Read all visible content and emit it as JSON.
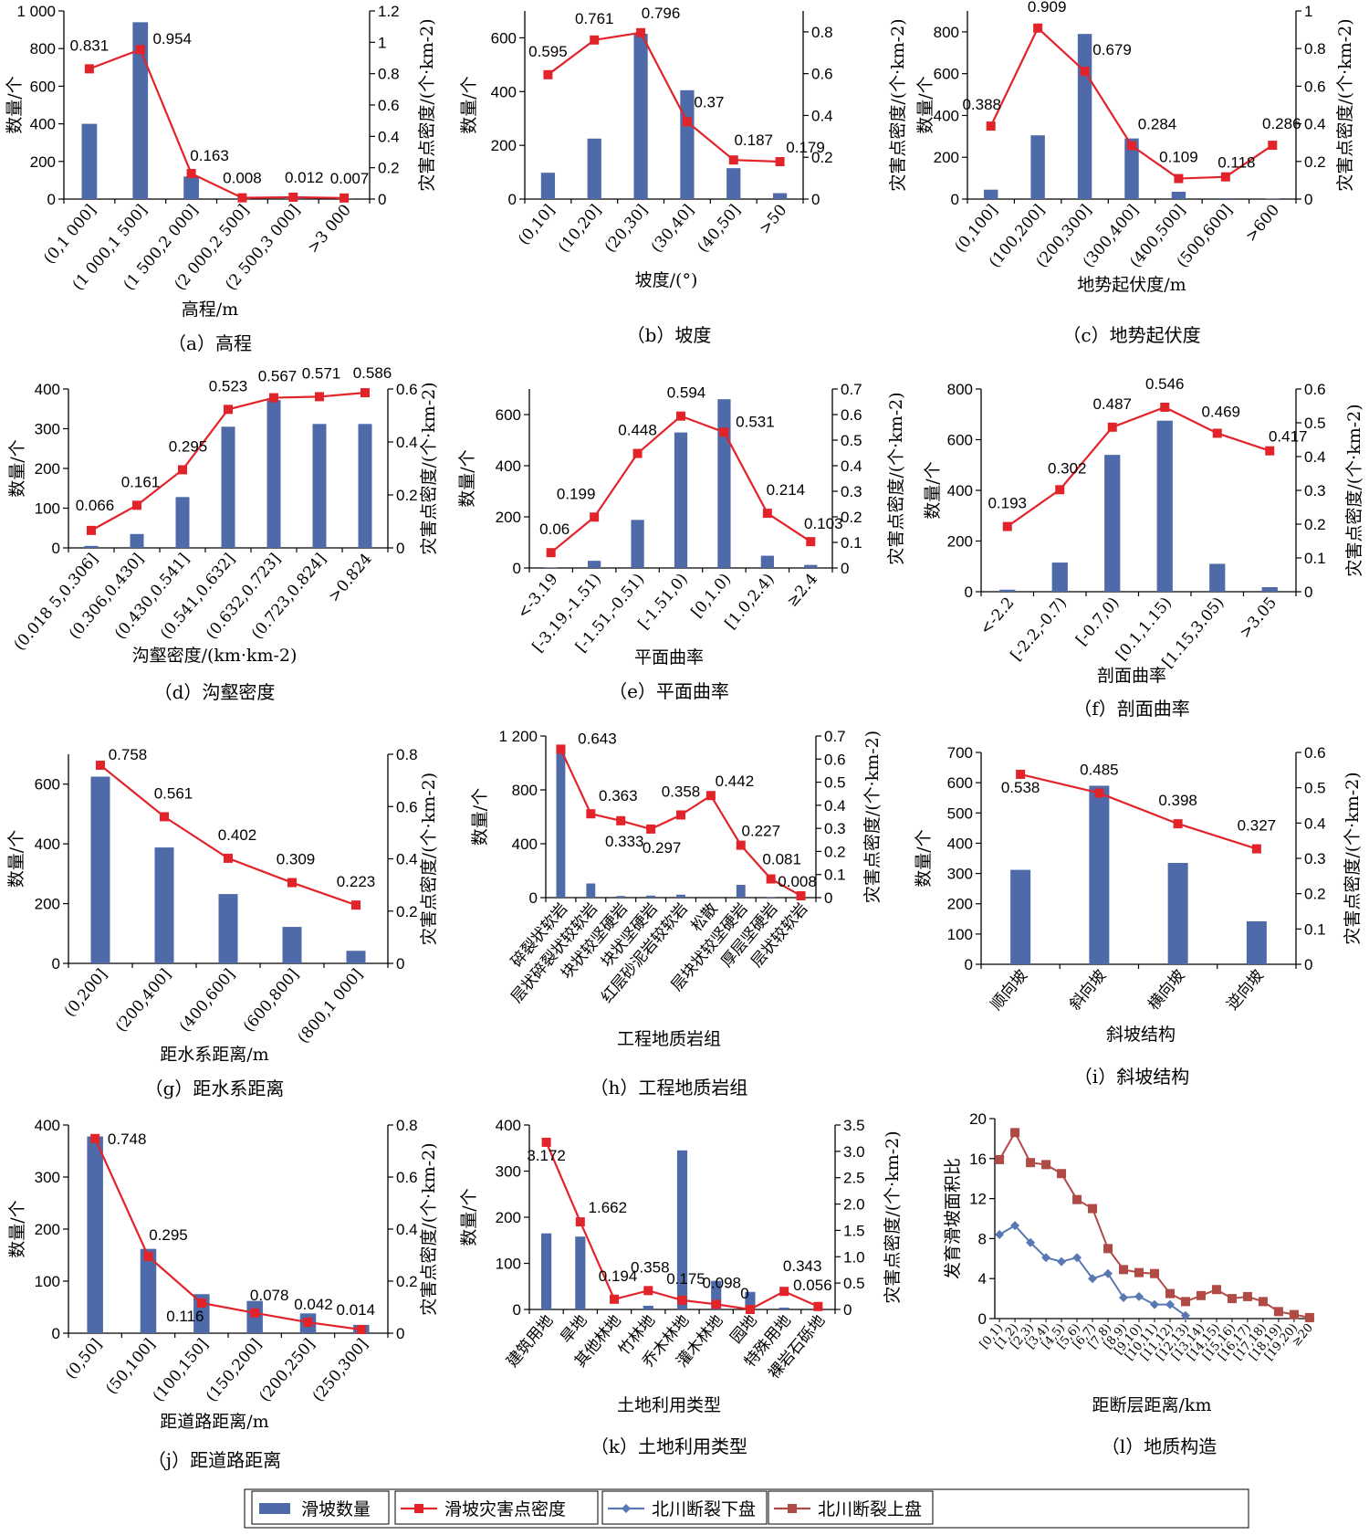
{
  "legend": {
    "items": [
      {
        "label": "滑坡数量",
        "kind": "bar",
        "color": "#4f6aa8"
      },
      {
        "label": "滑坡灾害点密度",
        "kind": "line",
        "color": "#e2232a"
      },
      {
        "label": "北川断裂下盘",
        "kind": "line-diamond",
        "color": "#5878b4"
      },
      {
        "label": "北川断裂上盘",
        "kind": "line-square",
        "color": "#b04a45"
      }
    ]
  },
  "chart_data": [
    {
      "id": "a",
      "type": "bar+line",
      "caption": "（a）高程",
      "xlabel": "高程/m",
      "ylabel": "数量/个",
      "y2label": "灾害点密度/(个·km-2)",
      "categories": [
        "(0,1 000]",
        "(1 000,1 500]",
        "(1 500,2 000]",
        "(2 000,2 500]",
        "(2 500,3 000]",
        ">3 000"
      ],
      "bars": [
        400,
        940,
        120,
        5,
        8,
        4
      ],
      "line": [
        0.831,
        0.954,
        0.163,
        0.008,
        0.012,
        0.007
      ],
      "line_labels": [
        "0.831",
        "0.954",
        "0.163",
        "0.008",
        "0.012",
        "0.007"
      ],
      "ylim": [
        0,
        1000
      ],
      "yticks": [
        0,
        200,
        400,
        600,
        800,
        1000
      ],
      "yticklabels": [
        "0",
        "200",
        "400",
        "600",
        "800",
        "1 000"
      ],
      "y2lim": [
        0,
        1.2
      ],
      "y2ticks": [
        0,
        0.2,
        0.4,
        0.6,
        0.8,
        1,
        1.2
      ],
      "y2ticklabels": [
        "0",
        "0.2",
        "0.4",
        "0.6",
        "0.8",
        "1",
        "1.2"
      ]
    },
    {
      "id": "b",
      "type": "bar+line",
      "caption": "（b）坡度",
      "xlabel": "坡度/(°)",
      "ylabel": "数量/个",
      "y2label": "灾害点密度/(个·km-2)",
      "categories": [
        "(0,10]",
        "(10,20]",
        "(20,30]",
        "(30,40]",
        "(40,50]",
        ">50"
      ],
      "bars": [
        98,
        225,
        615,
        405,
        115,
        22
      ],
      "line": [
        0.595,
        0.761,
        0.796,
        0.37,
        0.187,
        0.179
      ],
      "line_labels": [
        "0.595",
        "0.761",
        "0.796",
        "0.37",
        "0.187",
        "0.179"
      ],
      "ylim": [
        0,
        700
      ],
      "yticks": [
        0,
        200,
        400,
        600
      ],
      "yticklabels": [
        "0",
        "200",
        "400",
        "600"
      ],
      "y2lim": [
        0,
        0.9
      ],
      "y2ticks": [
        0,
        0.2,
        0.4,
        0.6,
        0.8
      ],
      "y2ticklabels": [
        "0",
        "0.2",
        "0.4",
        "0.6",
        "0.8"
      ]
    },
    {
      "id": "c",
      "type": "bar+line",
      "caption": "（c）地势起伏度",
      "xlabel": "地势起伏度/m",
      "ylabel": "数量/个",
      "y2label": "灾害点密度/(个·km-2)",
      "categories": [
        "(0,100]",
        "(100,200]",
        "(200,300]",
        "(300,400]",
        "(400,500]",
        "(500,600]",
        ">600"
      ],
      "bars": [
        45,
        305,
        790,
        290,
        35,
        4,
        2
      ],
      "line": [
        0.388,
        0.909,
        0.679,
        0.284,
        0.109,
        0.118,
        0.286
      ],
      "line_labels": [
        "0.388",
        "0.909",
        "0.679",
        "0.284",
        "0.109",
        "0.118",
        "0.286"
      ],
      "ylim": [
        0,
        900
      ],
      "yticks": [
        0,
        200,
        400,
        600,
        800
      ],
      "yticklabels": [
        "0",
        "200",
        "400",
        "600",
        "800"
      ],
      "y2lim": [
        0,
        1
      ],
      "y2ticks": [
        0,
        0.2,
        0.4,
        0.6,
        0.8,
        1
      ],
      "y2ticklabels": [
        "0",
        "0.2",
        "0.4",
        "0.6",
        "0.8",
        "1"
      ]
    },
    {
      "id": "d",
      "type": "bar+line",
      "caption": "（d）沟壑密度",
      "xlabel": "沟壑密度/(km·km-2)",
      "ylabel": "数量/个",
      "y2label": "灾害点密度/(个·km-2)",
      "categories": [
        "(0.018 5,0.306]",
        "(0.306,0.430]",
        "(0.430,0.541]",
        "(0.541,0.632]",
        "(0.632,0.723]",
        "(0.723,0.824]",
        ">0.824"
      ],
      "bars": [
        5,
        35,
        128,
        305,
        372,
        312,
        312
      ],
      "line": [
        0.066,
        0.161,
        0.295,
        0.523,
        0.567,
        0.571,
        0.586
      ],
      "line_labels": [
        "0.066",
        "0.161",
        "0.295",
        "0.523",
        "0.567",
        "0.571",
        "0.586"
      ],
      "ylim": [
        0,
        400
      ],
      "yticks": [
        0,
        100,
        200,
        300,
        400
      ],
      "yticklabels": [
        "0",
        "100",
        "200",
        "300",
        "400"
      ],
      "y2lim": [
        0,
        0.6
      ],
      "y2ticks": [
        0,
        0.2,
        0.4,
        0.6
      ],
      "y2ticklabels": [
        "0",
        "0.2",
        "0.4",
        "0.6"
      ]
    },
    {
      "id": "e",
      "type": "bar+line",
      "caption": "（e）平面曲率",
      "xlabel": "平面曲率",
      "ylabel": "数量/个",
      "y2label": "灾害点密度/(个·km-2)",
      "categories": [
        "<-3.19",
        "[-3.19,-1.51)",
        "[-1.51,-0.51)",
        "[-1.51,0)",
        "[0,1.0)",
        "[1.0,2.4)",
        "≥2.4"
      ],
      "bars": [
        2,
        28,
        188,
        530,
        660,
        48,
        12
      ],
      "line": [
        0.06,
        0.199,
        0.448,
        0.594,
        0.531,
        0.214,
        0.103
      ],
      "line_labels": [
        "0.06",
        "0.199",
        "0.448",
        "0.594",
        "0.531",
        "0.214",
        "0.103"
      ],
      "ylim": [
        0,
        700
      ],
      "yticks": [
        0,
        200,
        400,
        600
      ],
      "yticklabels": [
        "0",
        "200",
        "400",
        "600"
      ],
      "y2lim": [
        0,
        0.7
      ],
      "y2ticks": [
        0,
        0.1,
        0.2,
        0.3,
        0.4,
        0.5,
        0.6,
        0.7
      ],
      "y2ticklabels": [
        "0",
        "0.1",
        "0.2",
        "0.3",
        "0.4",
        "0.5",
        "0.6",
        "0.7"
      ]
    },
    {
      "id": "f",
      "type": "bar+line",
      "caption": "（f）剖面曲率",
      "xlabel": "剖面曲率",
      "ylabel": "数量/个",
      "y2label": "灾害点密度/(个·km-2)",
      "categories": [
        "<-2.2",
        "[-2.2,-0.7)",
        "[-0.7,0)",
        "[0.1,1.15)",
        "[1.15,3.05)",
        ">3.05"
      ],
      "bars": [
        8,
        115,
        540,
        675,
        110,
        18
      ],
      "line": [
        0.193,
        0.302,
        0.487,
        0.546,
        0.469,
        0.417
      ],
      "line_labels": [
        "0.193",
        "0.302",
        "0.487",
        "0.546",
        "0.469",
        "0.417"
      ],
      "ylim": [
        0,
        800
      ],
      "yticks": [
        0,
        200,
        400,
        600,
        800
      ],
      "yticklabels": [
        "0",
        "200",
        "400",
        "600",
        "800"
      ],
      "y2lim": [
        0,
        0.6
      ],
      "y2ticks": [
        0,
        0.1,
        0.2,
        0.3,
        0.4,
        0.5,
        0.6
      ],
      "y2ticklabels": [
        "0",
        "0.1",
        "0.2",
        "0.3",
        "0.4",
        "0.5",
        "0.6"
      ]
    },
    {
      "id": "g",
      "type": "bar+line",
      "caption": "（g）距水系距离",
      "xlabel": "距水系距离/m",
      "ylabel": "数量/个",
      "y2label": "灾害点密度/(个·km-2)",
      "categories": [
        "(0,200]",
        "(200,400]",
        "(400,600]",
        "(600,800]",
        "(800,1 000]"
      ],
      "bars": [
        625,
        388,
        232,
        122,
        42
      ],
      "line": [
        0.758,
        0.561,
        0.402,
        0.309,
        0.223
      ],
      "line_labels": [
        "0.758",
        "0.561",
        "0.402",
        "0.309",
        "0.223"
      ],
      "ylim": [
        0,
        700
      ],
      "yticks": [
        0,
        200,
        400,
        600
      ],
      "yticklabels": [
        "0",
        "200",
        "400",
        "600"
      ],
      "y2lim": [
        0,
        0.8
      ],
      "y2ticks": [
        0,
        0.2,
        0.4,
        0.6,
        0.8
      ],
      "y2ticklabels": [
        "0",
        "0.2",
        "0.4",
        "0.6",
        "0.8"
      ]
    },
    {
      "id": "h",
      "type": "bar+line",
      "caption": "（h）工程地质岩组",
      "xlabel": "工程地质岩组",
      "ylabel": "数量/个",
      "y2label": "灾害点密度/(个·km-2)",
      "categories": [
        "碎裂状软岩",
        "层状碎裂状较软岩",
        "块状较坚硬岩",
        "块状坚硬岩",
        "红层砂泥岩较软岩",
        "松散",
        "层块状较坚硬岩",
        "厚层坚硬岩",
        "层状较软岩"
      ],
      "bars": [
        1130,
        105,
        12,
        15,
        22,
        0,
        95,
        4,
        2
      ],
      "line": [
        0.643,
        0.363,
        0.333,
        0.297,
        0.358,
        0.442,
        0.227,
        0.081,
        0.008
      ],
      "line_labels": [
        "0.643",
        "0.363",
        "0.333",
        "0.297",
        "0.358",
        "0.442",
        "0.227",
        "0.081",
        "0.008"
      ],
      "ylim": [
        0,
        1200
      ],
      "yticks": [
        0,
        400,
        800,
        1200
      ],
      "yticklabels": [
        "0",
        "400",
        "800",
        "1 200"
      ],
      "y2lim": [
        0,
        0.7
      ],
      "y2ticks": [
        0,
        0.1,
        0.2,
        0.3,
        0.4,
        0.5,
        0.6,
        0.7
      ],
      "y2ticklabels": [
        "0",
        "0.1",
        "0.2",
        "0.3",
        "0.4",
        "0.5",
        "0.6",
        "0.7"
      ]
    },
    {
      "id": "i",
      "type": "bar+line",
      "caption": "（i）斜坡结构",
      "xlabel": "斜坡结构",
      "ylabel": "数量/个",
      "y2label": "灾害点密度/(个·km-2)",
      "categories": [
        "顺向坡",
        "斜向坡",
        "横向坡",
        "逆向坡"
      ],
      "bars": [
        312,
        590,
        335,
        142
      ],
      "line": [
        0.538,
        0.485,
        0.398,
        0.327
      ],
      "line_labels": [
        "0.538",
        "0.485",
        "0.398",
        "0.327"
      ],
      "ylim": [
        0,
        700
      ],
      "yticks": [
        0,
        100,
        200,
        300,
        400,
        500,
        600,
        700
      ],
      "yticklabels": [
        "0",
        "100",
        "200",
        "300",
        "400",
        "500",
        "600",
        "700"
      ],
      "y2lim": [
        0,
        0.6
      ],
      "y2ticks": [
        0,
        0.1,
        0.2,
        0.3,
        0.4,
        0.5,
        0.6
      ],
      "y2ticklabels": [
        "0",
        "0.1",
        "0.2",
        "0.3",
        "0.4",
        "0.5",
        "0.6"
      ]
    },
    {
      "id": "j",
      "type": "bar+line",
      "caption": "（j）距道路距离",
      "xlabel": "距道路距离/m",
      "ylabel": "数量/个",
      "y2label": "灾害点密度/(个·km-2)",
      "categories": [
        "(0,50]",
        "(50,100]",
        "(100,150]",
        "(150,200]",
        "(200,250]",
        "(250,300]"
      ],
      "bars": [
        378,
        162,
        75,
        62,
        38,
        16
      ],
      "line": [
        0.748,
        0.295,
        0.116,
        0.078,
        0.042,
        0.014
      ],
      "line_labels": [
        "0.748",
        "0.295",
        "0.116",
        "0.078",
        "0.042",
        "0.014"
      ],
      "ylim": [
        0,
        400
      ],
      "yticks": [
        0,
        100,
        200,
        300,
        400
      ],
      "yticklabels": [
        "0",
        "100",
        "200",
        "300",
        "400"
      ],
      "y2lim": [
        0,
        0.8
      ],
      "y2ticks": [
        0,
        0.2,
        0.4,
        0.6,
        0.8
      ],
      "y2ticklabels": [
        "0",
        "0.2",
        "0.4",
        "0.6",
        "0.8"
      ]
    },
    {
      "id": "k",
      "type": "bar+line",
      "caption": "（k）土地利用类型",
      "xlabel": "土地利用类型",
      "ylabel": "数量/个",
      "y2label": "灾害点密度/(个·km-2)",
      "categories": [
        "建筑用地",
        "旱地",
        "其他林地",
        "竹林地",
        "乔木林地",
        "灌木林地",
        "园地",
        "特殊用地",
        "裸岩石砾地"
      ],
      "bars": [
        165,
        158,
        2,
        8,
        345,
        62,
        38,
        4,
        2
      ],
      "line": [
        3.172,
        1.662,
        0.194,
        0.358,
        0.175,
        0.098,
        0,
        0.343,
        0.056
      ],
      "line_labels": [
        "3.172",
        "1.662",
        "0.194",
        "0.358",
        "0.175",
        "0.098",
        "0",
        "0.343",
        "0.056"
      ],
      "ylim": [
        0,
        400
      ],
      "yticks": [
        0,
        100,
        200,
        300,
        400
      ],
      "yticklabels": [
        "0",
        "100",
        "200",
        "300",
        "400"
      ],
      "y2lim": [
        0,
        3.5
      ],
      "y2ticks": [
        0,
        0.5,
        1.0,
        1.5,
        2.0,
        2.5,
        3.0,
        3.5
      ],
      "y2ticklabels": [
        "0",
        "0.5",
        "1.0",
        "1.5",
        "2.0",
        "2.5",
        "3.0",
        "3.5"
      ]
    },
    {
      "id": "l",
      "type": "line",
      "caption": "（l）地质构造",
      "xlabel": "距断层距离/km",
      "ylabel": "发育滑坡面积比",
      "categories": [
        "[0,1)",
        "[1,2)",
        "[2,3)",
        "[3,4)",
        "[4,5)",
        "[5,6)",
        "[6,7)",
        "[7,8)",
        "[8,9)",
        "[9,10)",
        "[10,11)",
        "[11,12)",
        "[12,13)",
        "[13,14)",
        "[14,15)",
        "[15,16)",
        "[16,17)",
        "[17,18)",
        "[18,19)",
        "[19,20)",
        "≥20"
      ],
      "series": [
        {
          "name": "北川断裂下盘",
          "marker": "diamond",
          "values": [
            8.4,
            9.3,
            7.6,
            6.1,
            5.7,
            6.1,
            4.0,
            4.5,
            2.1,
            2.2,
            1.4,
            1.4,
            0.3,
            null,
            null,
            null,
            null,
            null,
            null,
            null,
            null
          ]
        },
        {
          "name": "北川断裂上盘",
          "marker": "square",
          "values": [
            15.9,
            18.6,
            15.6,
            15.4,
            14.5,
            11.9,
            11.0,
            7.0,
            4.9,
            4.6,
            4.5,
            2.5,
            1.7,
            2.3,
            2.9,
            2.0,
            2.2,
            1.7,
            0.7,
            0.4,
            0.1
          ]
        }
      ],
      "ylim": [
        0,
        20
      ],
      "yticks": [
        0,
        4,
        8,
        12,
        16,
        20
      ],
      "yticklabels": [
        "0",
        "4",
        "8",
        "12",
        "16",
        "20"
      ]
    }
  ]
}
